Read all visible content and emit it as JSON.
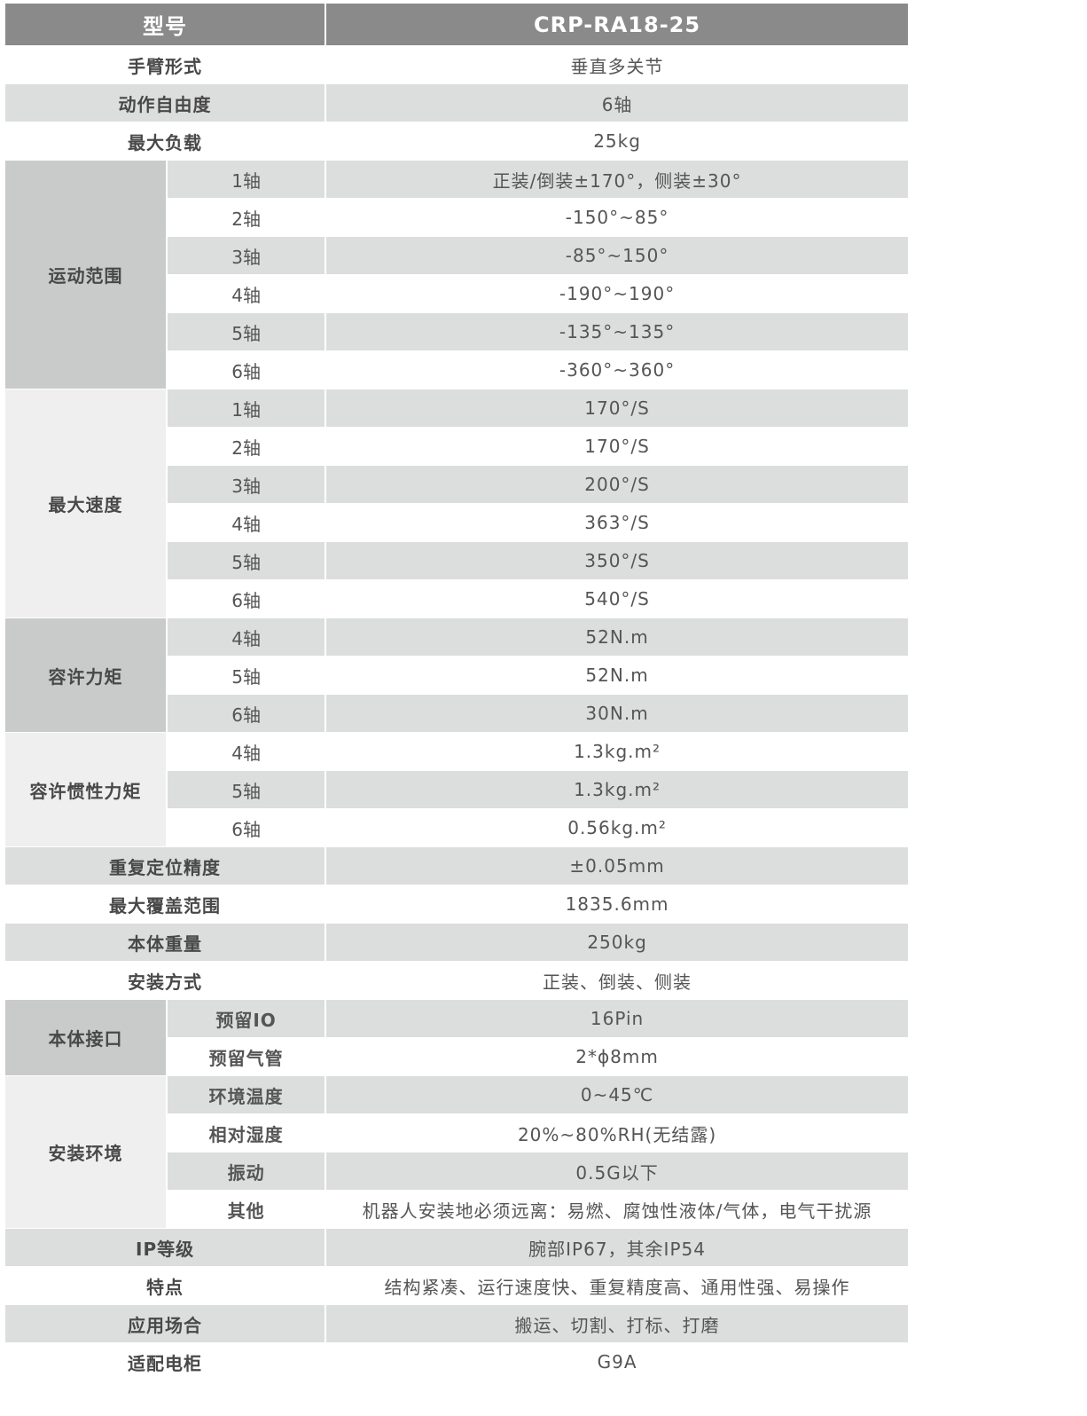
{
  "header": {
    "label": "型号",
    "model": "CRP-RA18-25"
  },
  "colors": {
    "header_bg": "#8a8a8a",
    "stripe": "#dcdddd",
    "group_dark": "#c9caca",
    "group_light": "#efefef"
  },
  "rows": [
    {
      "label": "手臂形式",
      "value": "垂直多关节"
    },
    {
      "label": "动作自由度",
      "value": "6轴"
    },
    {
      "label": "最大负载",
      "value": "25kg"
    },
    {
      "group": "运动范围",
      "shade": "dark",
      "items": [
        {
          "label": "1轴",
          "value": "正装/倒装±170°，侧装±30°"
        },
        {
          "label": "2轴",
          "value": "-150°~85°"
        },
        {
          "label": "3轴",
          "value": "-85°~150°"
        },
        {
          "label": "4轴",
          "value": "-190°~190°"
        },
        {
          "label": "5轴",
          "value": "-135°~135°"
        },
        {
          "label": "6轴",
          "value": "-360°~360°"
        }
      ]
    },
    {
      "group": "最大速度",
      "shade": "light",
      "items": [
        {
          "label": "1轴",
          "value": "170°/S"
        },
        {
          "label": "2轴",
          "value": "170°/S"
        },
        {
          "label": "3轴",
          "value": "200°/S"
        },
        {
          "label": "4轴",
          "value": "363°/S"
        },
        {
          "label": "5轴",
          "value": "350°/S"
        },
        {
          "label": "6轴",
          "value": "540°/S"
        }
      ]
    },
    {
      "group": "容许力矩",
      "shade": "dark",
      "items": [
        {
          "label": "4轴",
          "value": "52N.m"
        },
        {
          "label": "5轴",
          "value": "52N.m"
        },
        {
          "label": "6轴",
          "value": "30N.m"
        }
      ]
    },
    {
      "group": "容许惯性力矩",
      "shade": "light",
      "items": [
        {
          "label": "4轴",
          "value": "1.3kg.m²"
        },
        {
          "label": "5轴",
          "value": "1.3kg.m²"
        },
        {
          "label": "6轴",
          "value": "0.56kg.m²"
        }
      ]
    },
    {
      "label": "重复定位精度",
      "value": "±0.05mm"
    },
    {
      "label": "最大覆盖范围",
      "value": "1835.6mm"
    },
    {
      "label": "本体重量",
      "value": "250kg"
    },
    {
      "label": "安装方式",
      "value": "正装、倒装、侧装"
    },
    {
      "group": "本体接口",
      "shade": "dark",
      "bold_sub": true,
      "items": [
        {
          "label": "预留IO",
          "value": "16Pin"
        },
        {
          "label": "预留气管",
          "value": "2*ϕ8mm"
        }
      ]
    },
    {
      "group": "安装环境",
      "shade": "light",
      "bold_sub": true,
      "items": [
        {
          "label": "环境温度",
          "value": "0~45℃"
        },
        {
          "label": "相对湿度",
          "value": "20%~80%RH(无结露)"
        },
        {
          "label": "振动",
          "value": "0.5G以下"
        },
        {
          "label": "其他",
          "value": "机器人安装地必须远离：易燃、腐蚀性液体/气体，电气干扰源"
        }
      ]
    },
    {
      "label": "IP等级",
      "value": "腕部IP67，其余IP54"
    },
    {
      "label": "特点",
      "value": "结构紧凑、运行速度快、重复精度高、通用性强、易操作"
    },
    {
      "label": "应用场合",
      "value": "搬运、切割、打标、打磨"
    },
    {
      "label": "适配电柜",
      "value": "G9A"
    }
  ]
}
